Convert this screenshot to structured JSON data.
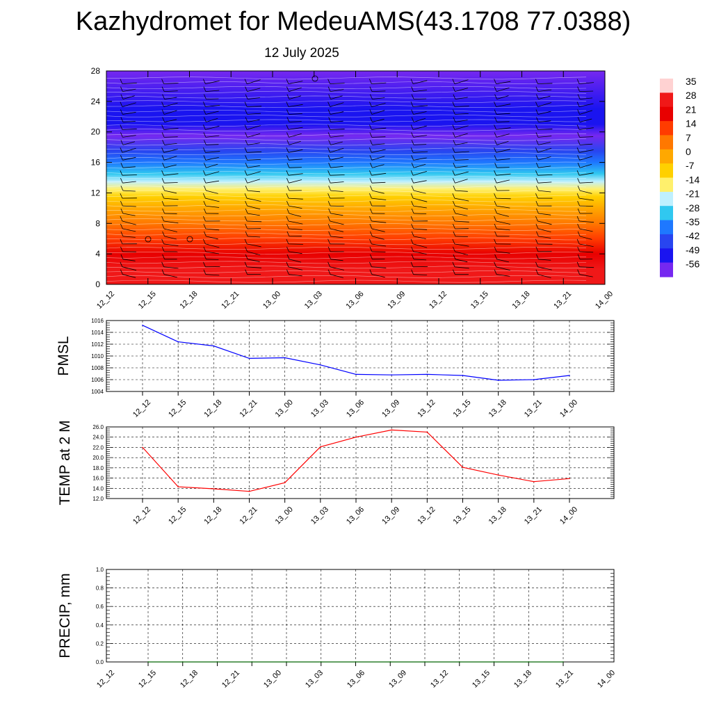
{
  "header": {
    "title": "Kazhydromet for MedeuAMS(43.1708 77.0388)",
    "date": "12 July 2025"
  },
  "chart_data": [
    {
      "type": "heatmap",
      "name": "vertical-cross-section",
      "x": [
        "12_12",
        "12_15",
        "12_18",
        "12_21",
        "13_00",
        "13_03",
        "13_06",
        "13_09",
        "13_12",
        "13_15",
        "13_18",
        "13_21",
        "14_00"
      ],
      "ylim": [
        0,
        28
      ],
      "yticks": [
        0,
        4,
        8,
        12,
        16,
        20,
        24,
        28
      ],
      "colorbar": {
        "labels": [
          "35",
          "28",
          "21",
          "14",
          "7",
          "0",
          "-7",
          "-14",
          "-21",
          "-28",
          "-35",
          "-42",
          "-49",
          "-56"
        ],
        "colors": [
          "#ffd2d2",
          "#f01818",
          "#e80000",
          "#ff3c00",
          "#ff7800",
          "#ffa800",
          "#ffd000",
          "#fff06c",
          "#bff0ff",
          "#30c8f0",
          "#1e78ff",
          "#2845f0",
          "#1a14f0",
          "#7628f0"
        ]
      },
      "temperature_profile": [
        {
          "y": 0,
          "t": 30
        },
        {
          "y": 2,
          "t": 28
        },
        {
          "y": 4,
          "t": 22
        },
        {
          "y": 6,
          "t": 14
        },
        {
          "y": 8,
          "t": 7
        },
        {
          "y": 10,
          "t": 0
        },
        {
          "y": 11.5,
          "t": -7
        },
        {
          "y": 12.5,
          "t": -14
        },
        {
          "y": 13.5,
          "t": -21
        },
        {
          "y": 14.5,
          "t": -28
        },
        {
          "y": 16,
          "t": -35
        },
        {
          "y": 17.5,
          "t": -42
        },
        {
          "y": 19.5,
          "t": -56
        },
        {
          "y": 21,
          "t": -52
        },
        {
          "y": 23,
          "t": -49
        },
        {
          "y": 28,
          "t": -56
        }
      ]
    },
    {
      "type": "line",
      "name": "pmsl",
      "ylabel": "PMSL",
      "x": [
        "12_12",
        "12_15",
        "12_18",
        "12_21",
        "13_00",
        "13_03",
        "13_06",
        "13_09",
        "13_12",
        "13_15",
        "13_18",
        "13_21",
        "14_00"
      ],
      "values": [
        1015.2,
        1012.4,
        1011.7,
        1009.6,
        1009.7,
        1008.5,
        1006.9,
        1006.8,
        1006.9,
        1006.7,
        1005.9,
        1006.0,
        1006.7
      ],
      "ylim": [
        1004,
        1016
      ],
      "yticks": [
        "1004",
        "1006",
        "1008",
        "1010",
        "1012",
        "1014",
        "1016"
      ],
      "color": "#0000ff"
    },
    {
      "type": "line",
      "name": "temp2m",
      "ylabel": "TEMP at 2 M",
      "x": [
        "12_12",
        "12_15",
        "12_18",
        "12_21",
        "13_00",
        "13_03",
        "13_06",
        "13_09",
        "13_12",
        "13_15",
        "13_18",
        "13_21",
        "14_00"
      ],
      "values": [
        22.0,
        14.3,
        13.9,
        13.4,
        15.1,
        22.1,
        24.0,
        25.4,
        25.0,
        18.1,
        16.6,
        15.3,
        15.9
      ],
      "ylim": [
        12,
        26
      ],
      "yticks": [
        "12.0",
        "14.0",
        "16.0",
        "18.0",
        "20.0",
        "22.0",
        "24.0",
        "26.0"
      ],
      "color": "#ff0000"
    },
    {
      "type": "line",
      "name": "precip",
      "ylabel": "PRECIP, mm",
      "x": [
        "12_12",
        "12_15",
        "12_18",
        "12_21",
        "13_00",
        "13_03",
        "13_06",
        "13_09",
        "13_12",
        "13_15",
        "13_18",
        "13_21",
        "14_00"
      ],
      "values": [
        0,
        0,
        0,
        0,
        0,
        0,
        0,
        0,
        0,
        0,
        0,
        0,
        0
      ],
      "ylim": [
        0,
        1
      ],
      "yticks": [
        "0.0",
        "0.2",
        "0.4",
        "0.6",
        "0.8",
        "1.0"
      ],
      "color": "#006400"
    }
  ]
}
